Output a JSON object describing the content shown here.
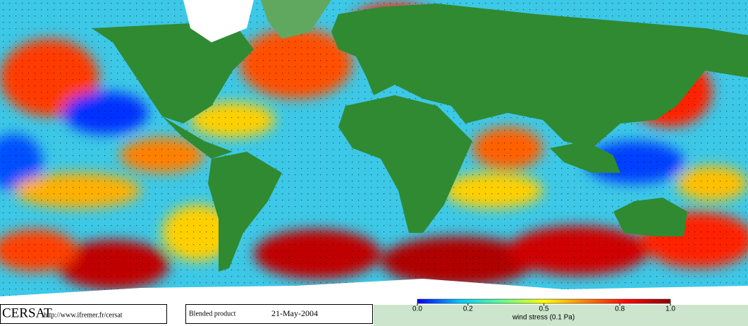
{
  "logo": "CERSAT",
  "url": "http://www.ifremer.fr/cersat",
  "product": "Blended product",
  "date": "21-May-2004",
  "colorbar": {
    "label": "wind stress (0.1 Pa)",
    "lim": [
      0,
      1
    ],
    "ticks": [
      {
        "value": 0,
        "label": "0.0"
      },
      0.2,
      0.5,
      0.8,
      {
        "value": 1,
        "label": "1.0"
      }
    ],
    "colors": [
      "#0000ff",
      "#00c8ff",
      "#60ff90",
      "#ffff00",
      "#ff8000",
      "#ff0000",
      "#900000"
    ]
  }
}
